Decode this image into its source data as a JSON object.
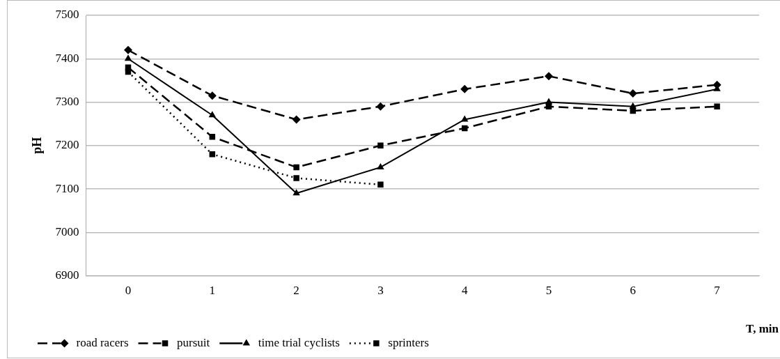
{
  "chart_data": {
    "type": "line",
    "xlabel": "T, min",
    "ylabel": "pH",
    "categories": [
      "0",
      "1",
      "2",
      "3",
      "4",
      "5",
      "6",
      "7"
    ],
    "series": [
      {
        "name": "road racers",
        "color": "#000000",
        "marker": "diamond",
        "line_style": "dashed",
        "values": [
          7420,
          7315,
          7260,
          7290,
          7330,
          7360,
          7320,
          7340
        ]
      },
      {
        "name": "pursuit",
        "color": "#000000",
        "marker": "square",
        "line_style": "dashed",
        "values": [
          7380,
          7220,
          7150,
          7200,
          7240,
          7290,
          7280,
          7290
        ]
      },
      {
        "name": "time trial cyclists",
        "color": "#000000",
        "marker": "triangle",
        "line_style": "solid",
        "values": [
          7400,
          7270,
          7090,
          7150,
          7260,
          7300,
          7290,
          7330
        ]
      },
      {
        "name": "sprinters",
        "color": "#000000",
        "marker": "square",
        "line_style": "dotted",
        "values": [
          7370,
          7180,
          7125,
          7110,
          null,
          null,
          null,
          null
        ]
      }
    ],
    "ylim": [
      6900,
      7500
    ],
    "yticks": [
      6900,
      7000,
      7100,
      7200,
      7300,
      7400,
      7500
    ],
    "grid": "y",
    "legend": "bottom"
  }
}
